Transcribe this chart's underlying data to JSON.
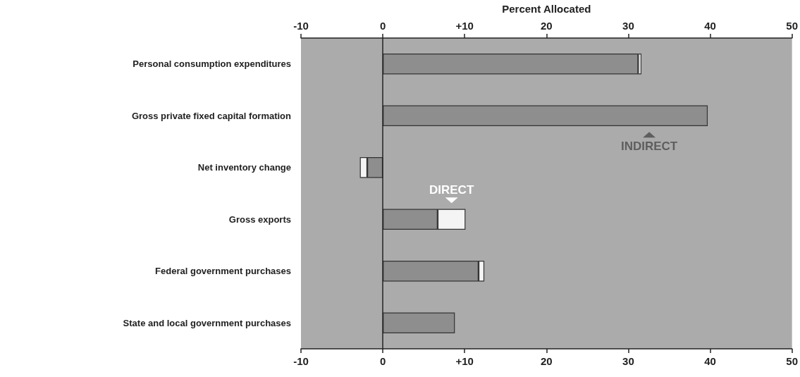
{
  "chart_data": {
    "type": "bar",
    "orientation": "horizontal",
    "stacked": true,
    "grid": false,
    "legend": false,
    "categories": [
      "Personal consumption expenditures",
      "Gross private fixed capital formation",
      "Net inventory change",
      "Gross exports",
      "Federal government purchases",
      "State and local government purchases"
    ],
    "series": [
      {
        "name": "INDIRECT",
        "color": "#8e8e8e",
        "values": [
          31.2,
          39.7,
          -1.9,
          6.7,
          11.7,
          8.8
        ]
      },
      {
        "name": "DIRECT",
        "color": "#f4f4f4",
        "values": [
          0.4,
          null,
          -0.9,
          3.4,
          0.7,
          null
        ]
      }
    ],
    "xlim": [
      -10,
      50
    ],
    "xticks": [
      -10,
      0,
      {
        "value": 10,
        "label": "+10"
      },
      20,
      30,
      40,
      50
    ],
    "ref_lines": [
      {
        "axis": "x",
        "value": 0,
        "color": "#222222"
      }
    ],
    "x2lim": [
      -10,
      50
    ],
    "x2ticks": [
      -10,
      0,
      {
        "value": 10,
        "label": "+10"
      },
      20,
      30,
      40,
      50
    ],
    "x2label": "Percent Allocated"
  }
}
